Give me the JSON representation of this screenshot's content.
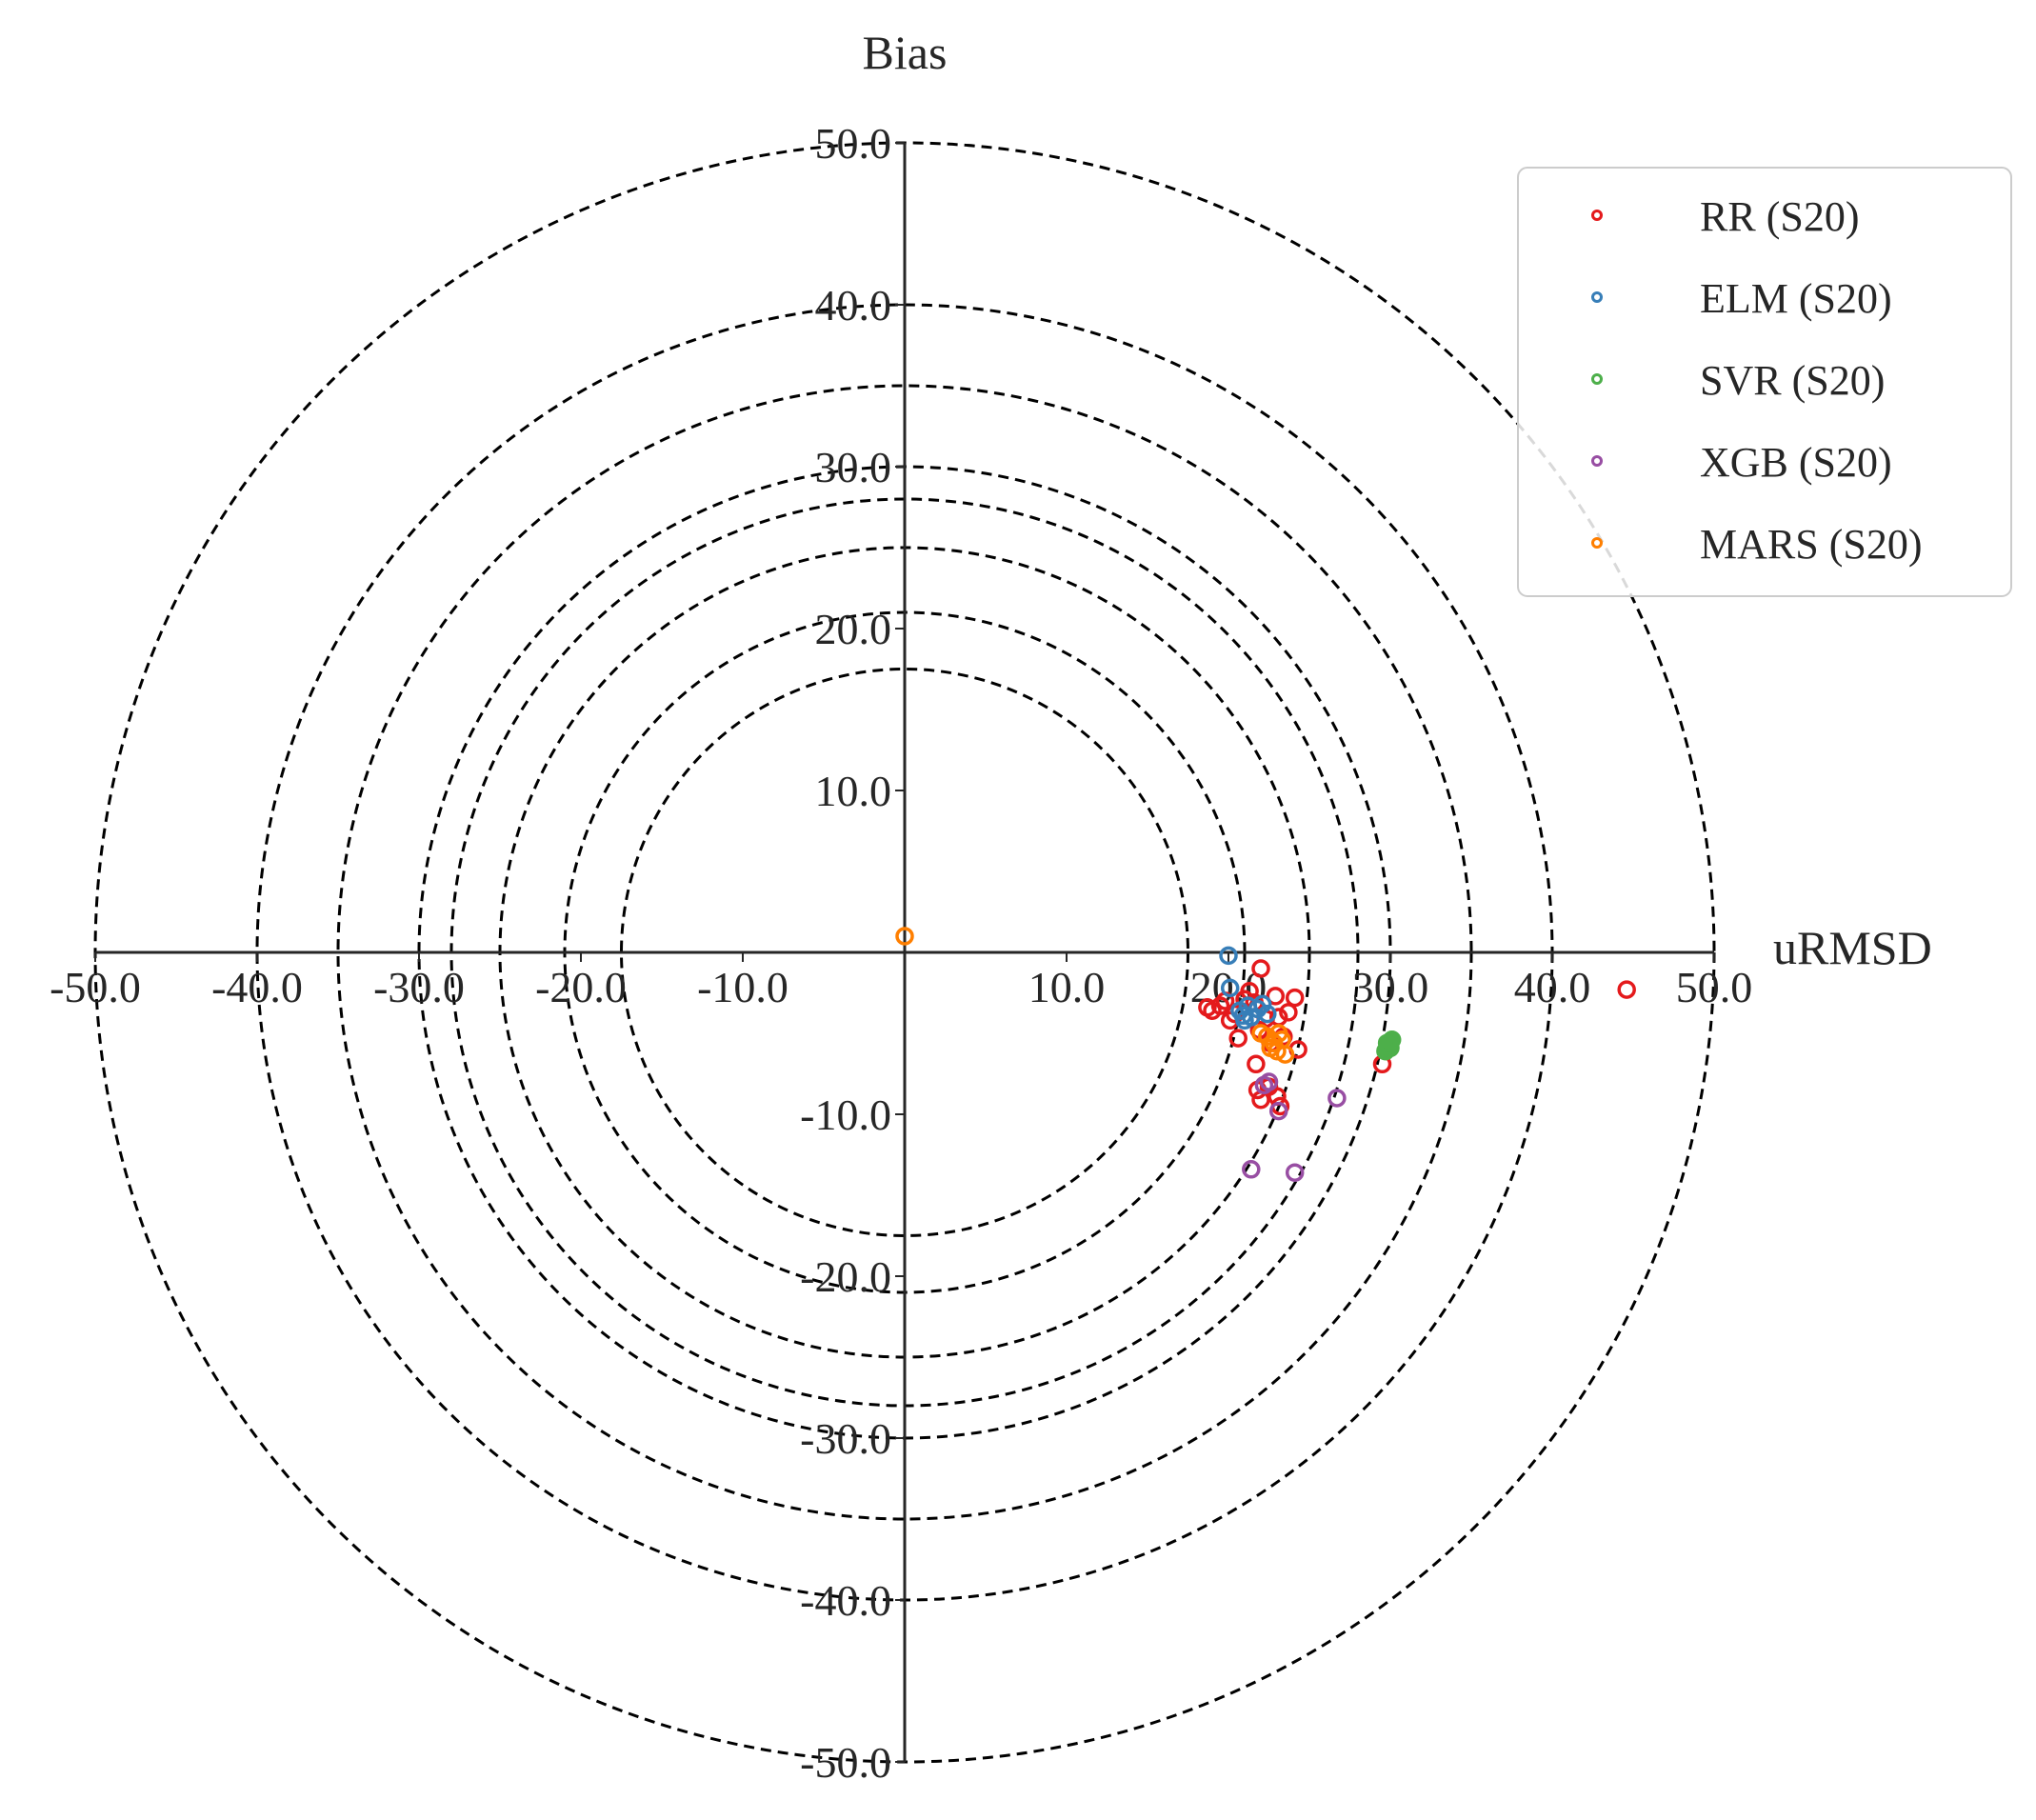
{
  "chart_data": {
    "type": "scatter",
    "title": "",
    "xlabel": "uRMSD",
    "ylabel": "Bias",
    "xlim": [
      -50,
      50
    ],
    "ylim": [
      -50,
      50
    ],
    "x_ticks": [
      "-50.0",
      "-40.0",
      "-30.0",
      "-20.0",
      "-10.0",
      "10.0",
      "20.0",
      "30.0",
      "40.0",
      "50.0"
    ],
    "y_ticks": [
      "50.0",
      "40.0",
      "30.0",
      "20.0",
      "10.0",
      "-10.0",
      "-20.0",
      "-30.0",
      "-40.0",
      "-50.0"
    ],
    "circle_radii": [
      17.5,
      21,
      25,
      28,
      30,
      35,
      40,
      50
    ],
    "grid": false,
    "legend_position": "top-right",
    "series": [
      {
        "name": "RR (S20)",
        "color": "#e41a1c",
        "points": [
          [
            18.7,
            -3.4
          ],
          [
            19.0,
            -3.6
          ],
          [
            19.5,
            -3.3
          ],
          [
            19.8,
            -3.0
          ],
          [
            20.1,
            -4.2
          ],
          [
            20.4,
            -3.8
          ],
          [
            20.6,
            -5.3
          ],
          [
            21.0,
            -2.9
          ],
          [
            21.3,
            -2.4
          ],
          [
            21.6,
            -3.1
          ],
          [
            21.9,
            -4.8
          ],
          [
            22.0,
            -1.0
          ],
          [
            22.3,
            -4.1
          ],
          [
            22.6,
            -5.6
          ],
          [
            22.9,
            -2.7
          ],
          [
            23.1,
            -4.0
          ],
          [
            23.4,
            -5.2
          ],
          [
            23.7,
            -3.7
          ],
          [
            24.1,
            -2.8
          ],
          [
            24.3,
            -6.0
          ],
          [
            21.7,
            -6.9
          ],
          [
            21.8,
            -8.5
          ],
          [
            22.0,
            -9.1
          ],
          [
            22.5,
            -8.3
          ],
          [
            23.0,
            -8.9
          ],
          [
            23.2,
            -9.5
          ],
          [
            29.5,
            -6.9
          ],
          [
            44.6,
            -2.3
          ]
        ]
      },
      {
        "name": "ELM (S20)",
        "color": "#377eb8",
        "points": [
          [
            20.0,
            -0.2
          ],
          [
            20.1,
            -2.2
          ],
          [
            20.7,
            -3.6
          ],
          [
            21.0,
            -4.2
          ],
          [
            21.4,
            -4.0
          ],
          [
            21.8,
            -3.5
          ],
          [
            22.1,
            -3.2
          ],
          [
            22.4,
            -3.8
          ],
          [
            21.2,
            -3.3
          ],
          [
            20.9,
            -3.9
          ]
        ]
      },
      {
        "name": "SVR (S20)",
        "color": "#4daf4a",
        "points": [
          [
            29.7,
            -6.1
          ],
          [
            29.9,
            -5.7
          ],
          [
            30.1,
            -5.4
          ],
          [
            30.0,
            -5.9
          ],
          [
            29.8,
            -5.6
          ]
        ]
      },
      {
        "name": "XGB (S20)",
        "color": "#984ea3",
        "points": [
          [
            22.2,
            -8.2
          ],
          [
            22.5,
            -8.0
          ],
          [
            23.1,
            -9.8
          ],
          [
            26.7,
            -9.0
          ],
          [
            21.4,
            -13.4
          ],
          [
            24.1,
            -13.6
          ]
        ]
      },
      {
        "name": "MARS (S20)",
        "color": "#ff7f00",
        "points": [
          [
            0.0,
            1.0
          ],
          [
            22.0,
            -5.0
          ],
          [
            22.4,
            -5.2
          ],
          [
            22.8,
            -5.6
          ],
          [
            23.1,
            -5.0
          ],
          [
            23.3,
            -5.4
          ],
          [
            23.0,
            -6.1
          ],
          [
            23.5,
            -6.3
          ],
          [
            22.6,
            -5.9
          ]
        ]
      }
    ]
  }
}
